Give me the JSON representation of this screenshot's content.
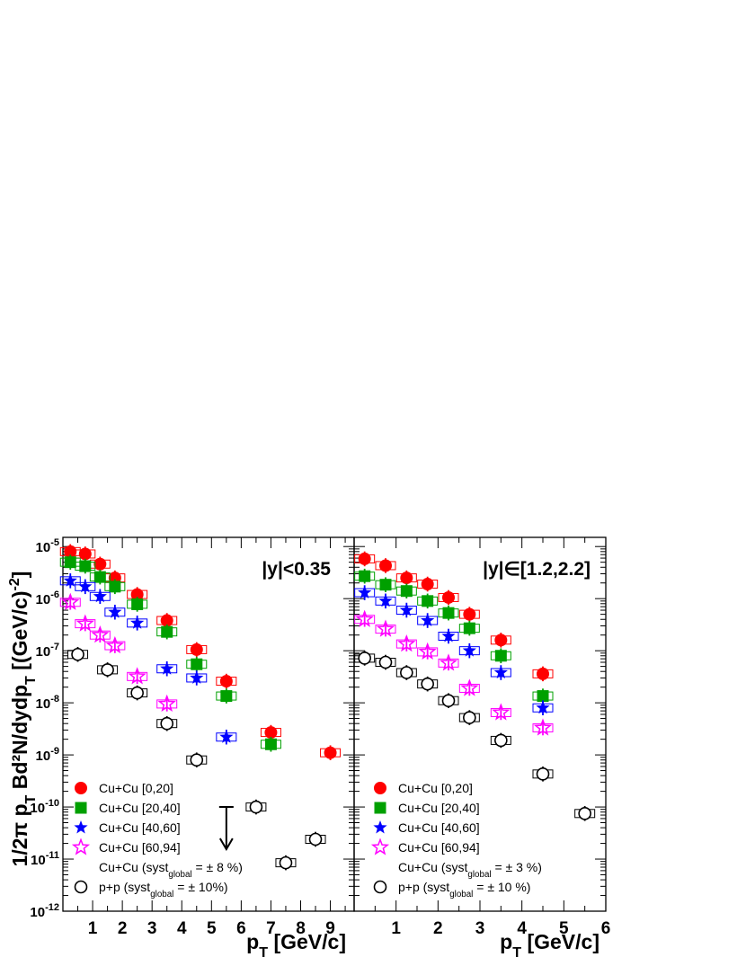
{
  "chart_data": [
    {
      "type": "scatter",
      "panel": "left",
      "title": "|y|<0.35",
      "xlabel": "p_T [GeV/c]",
      "ylabel": "1/2π p_T Bd²N/dydp_T [(GeV/c)^-2]",
      "xlim": [
        0,
        9.8
      ],
      "ylim": [
        1e-12,
        1.5e-05
      ],
      "yscale": "log",
      "xticks": [
        1,
        2,
        3,
        4,
        5,
        6,
        7,
        8,
        9
      ],
      "legend_position": "bottom-left",
      "legend_note": "Cu+Cu (syst_global = ± 8 %)",
      "series": [
        {
          "name": "Cu+Cu [0,20]",
          "marker": "circle-filled",
          "color": "#ff0000",
          "x": [
            0.25,
            0.75,
            1.25,
            1.75,
            2.5,
            3.5,
            4.5,
            5.5,
            7.0,
            9.0
          ],
          "y": [
            8e-06,
            7.2e-06,
            4.6e-06,
            2.5e-06,
            1.2e-06,
            3.8e-07,
            1.05e-07,
            2.6e-08,
            2.7e-09,
            1.1e-09
          ]
        },
        {
          "name": "Cu+Cu [20,40]",
          "marker": "square-filled",
          "color": "#00a000",
          "x": [
            0.25,
            0.75,
            1.25,
            1.75,
            2.5,
            3.5,
            4.5,
            5.5,
            7.0
          ],
          "y": [
            5e-06,
            4.2e-06,
            2.6e-06,
            1.7e-06,
            7.8e-07,
            2.3e-07,
            5.5e-08,
            1.35e-08,
            1.6e-09
          ]
        },
        {
          "name": "Cu+Cu [40,60]",
          "marker": "star-filled",
          "color": "#0000ff",
          "x": [
            0.25,
            0.75,
            1.25,
            1.75,
            2.5,
            3.5,
            4.5,
            5.5
          ],
          "y": [
            2.2e-06,
            1.7e-06,
            1.1e-06,
            5.5e-07,
            3.4e-07,
            4.5e-08,
            3e-08,
            2.2e-09
          ]
        },
        {
          "name": "Cu+Cu [60,94]",
          "marker": "star-open",
          "color": "#ff00ff",
          "x": [
            0.25,
            0.75,
            1.25,
            1.75,
            2.5,
            3.5
          ],
          "y": [
            8.5e-07,
            3.3e-07,
            2e-07,
            1.25e-07,
            3.2e-08,
            9.5e-09
          ]
        },
        {
          "name": "p+p (syst_global = ± 10%)",
          "marker": "circle-open",
          "color": "#000000",
          "x": [
            0.5,
            1.5,
            2.5,
            3.5,
            4.5,
            6.5,
            7.5,
            8.5
          ],
          "y": [
            8.5e-08,
            4.3e-08,
            1.55e-08,
            4e-09,
            8e-10,
            1e-10,
            8.5e-12,
            2.4e-11
          ]
        }
      ],
      "upper_limit": {
        "x": 5.5,
        "y": 1e-10
      }
    },
    {
      "type": "scatter",
      "panel": "right",
      "title": "|y|∈[1.2,2.2]",
      "xlabel": "p_T [GeV/c]",
      "xlim": [
        0,
        6.0
      ],
      "ylim": [
        1e-12,
        1.5e-05
      ],
      "yscale": "log",
      "xticks": [
        1,
        2,
        3,
        4,
        5,
        6
      ],
      "legend_position": "bottom-left",
      "legend_note": "Cu+Cu (syst_global = ± 3 %)",
      "series": [
        {
          "name": "Cu+Cu [0,20]",
          "marker": "circle-filled",
          "color": "#ff0000",
          "x": [
            0.25,
            0.75,
            1.25,
            1.75,
            2.25,
            2.75,
            3.5,
            4.5
          ],
          "y": [
            5.8e-06,
            4.3e-06,
            2.5e-06,
            1.9e-06,
            1.05e-06,
            5e-07,
            1.6e-07,
            3.6e-08
          ]
        },
        {
          "name": "Cu+Cu [20,40]",
          "marker": "square-filled",
          "color": "#00a000",
          "x": [
            0.25,
            0.75,
            1.25,
            1.75,
            2.25,
            2.75,
            3.5,
            4.5
          ],
          "y": [
            2.7e-06,
            1.85e-06,
            1.4e-06,
            9e-07,
            5.3e-07,
            2.7e-07,
            8e-08,
            1.35e-08
          ]
        },
        {
          "name": "Cu+Cu [40,60]",
          "marker": "star-filled",
          "color": "#0000ff",
          "x": [
            0.25,
            0.75,
            1.25,
            1.75,
            2.25,
            2.75,
            3.5,
            4.5
          ],
          "y": [
            1.3e-06,
            9e-07,
            6e-07,
            3.8e-07,
            1.9e-07,
            1e-07,
            3.8e-08,
            8e-09
          ]
        },
        {
          "name": "Cu+Cu [60,94]",
          "marker": "star-open",
          "color": "#ff00ff",
          "x": [
            0.25,
            0.75,
            1.25,
            1.75,
            2.25,
            2.75,
            3.5,
            4.5
          ],
          "y": [
            4e-07,
            2.6e-07,
            1.35e-07,
            9.5e-08,
            5.8e-08,
            1.9e-08,
            6.5e-09,
            3.3e-09
          ]
        },
        {
          "name": "p+p (syst_global = ± 10 %)",
          "marker": "circle-open",
          "color": "#000000",
          "x": [
            0.25,
            0.75,
            1.25,
            1.75,
            2.25,
            2.75,
            3.5,
            4.5,
            5.5
          ],
          "y": [
            7.2e-08,
            6e-08,
            3.8e-08,
            2.3e-08,
            1.1e-08,
            5.2e-09,
            1.9e-09,
            4.3e-10,
            7.5e-11
          ]
        }
      ]
    }
  ]
}
